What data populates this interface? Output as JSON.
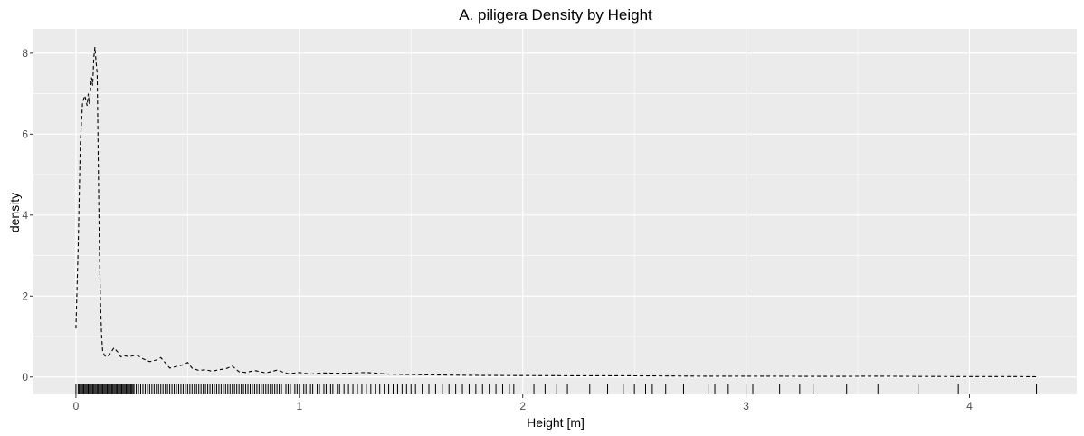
{
  "chart_data": {
    "type": "area",
    "title": "A. piligera Density by Height",
    "xlabel": "Height [m]",
    "ylabel": "density",
    "xlim": [
      -0.19,
      4.48
    ],
    "ylim": [
      -0.43,
      8.6
    ],
    "x_ticks": [
      0,
      1,
      2,
      3,
      4
    ],
    "y_ticks": [
      0,
      2,
      4,
      6,
      8
    ],
    "x_minor_ticks": [
      0.5,
      1.5,
      2.5,
      3.5
    ],
    "y_minor_ticks": [
      1,
      3,
      5,
      7
    ],
    "grid": true,
    "panel_background": "#EBEBEB",
    "grid_color": "#FFFFFF",
    "line_style": "dashed",
    "line_color": "#000000",
    "series": [
      {
        "x": [
          0.0,
          0.01,
          0.02,
          0.03,
          0.04,
          0.05,
          0.055,
          0.06,
          0.065,
          0.07,
          0.075,
          0.08,
          0.085,
          0.09,
          0.095,
          0.1,
          0.105,
          0.11,
          0.115,
          0.12,
          0.13,
          0.14,
          0.15,
          0.17,
          0.19,
          0.2,
          0.22,
          0.24,
          0.27,
          0.3,
          0.33,
          0.36,
          0.38,
          0.4,
          0.42,
          0.45,
          0.48,
          0.5,
          0.52,
          0.55,
          0.58,
          0.61,
          0.64,
          0.67,
          0.7,
          0.73,
          0.76,
          0.8,
          0.85,
          0.9,
          0.95,
          1.0,
          1.05,
          1.1,
          1.2,
          1.3,
          1.4,
          1.5,
          1.6,
          1.8,
          2.0,
          2.2,
          2.4,
          2.6,
          2.8,
          3.0,
          3.2,
          3.4,
          3.6,
          3.8,
          4.0,
          4.2,
          4.3
        ],
        "y": [
          1.2,
          3.2,
          5.8,
          6.8,
          6.95,
          6.7,
          7.0,
          6.75,
          7.1,
          7.4,
          7.2,
          7.9,
          8.15,
          7.8,
          7.5,
          5.3,
          3.2,
          1.8,
          1.0,
          0.62,
          0.52,
          0.5,
          0.55,
          0.72,
          0.6,
          0.5,
          0.52,
          0.5,
          0.55,
          0.45,
          0.38,
          0.42,
          0.48,
          0.35,
          0.22,
          0.26,
          0.3,
          0.36,
          0.22,
          0.16,
          0.18,
          0.14,
          0.18,
          0.2,
          0.27,
          0.13,
          0.11,
          0.16,
          0.1,
          0.17,
          0.08,
          0.11,
          0.07,
          0.1,
          0.09,
          0.11,
          0.07,
          0.06,
          0.05,
          0.04,
          0.035,
          0.03,
          0.03,
          0.025,
          0.02,
          0.02,
          0.018,
          0.015,
          0.02,
          0.012,
          0.01,
          0.01,
          0.005
        ]
      }
    ],
    "rug": [
      0.0,
      0.01,
      0.015,
      0.02,
      0.025,
      0.03,
      0.035,
      0.04,
      0.045,
      0.05,
      0.055,
      0.06,
      0.065,
      0.07,
      0.075,
      0.08,
      0.085,
      0.09,
      0.095,
      0.1,
      0.105,
      0.11,
      0.115,
      0.12,
      0.125,
      0.13,
      0.135,
      0.14,
      0.145,
      0.15,
      0.155,
      0.16,
      0.165,
      0.17,
      0.175,
      0.18,
      0.185,
      0.19,
      0.195,
      0.2,
      0.205,
      0.21,
      0.215,
      0.22,
      0.225,
      0.23,
      0.235,
      0.24,
      0.245,
      0.25,
      0.255,
      0.26,
      0.27,
      0.28,
      0.29,
      0.3,
      0.31,
      0.32,
      0.33,
      0.34,
      0.35,
      0.36,
      0.37,
      0.38,
      0.39,
      0.4,
      0.41,
      0.42,
      0.43,
      0.44,
      0.45,
      0.46,
      0.47,
      0.48,
      0.49,
      0.5,
      0.51,
      0.52,
      0.53,
      0.54,
      0.55,
      0.56,
      0.57,
      0.58,
      0.59,
      0.6,
      0.61,
      0.62,
      0.63,
      0.64,
      0.65,
      0.66,
      0.67,
      0.68,
      0.69,
      0.7,
      0.71,
      0.72,
      0.73,
      0.74,
      0.75,
      0.76,
      0.77,
      0.78,
      0.79,
      0.8,
      0.81,
      0.82,
      0.83,
      0.84,
      0.85,
      0.86,
      0.87,
      0.88,
      0.89,
      0.9,
      0.91,
      0.92,
      0.94,
      0.95,
      0.96,
      0.98,
      0.99,
      1.0,
      1.02,
      1.03,
      1.05,
      1.06,
      1.08,
      1.09,
      1.11,
      1.12,
      1.14,
      1.15,
      1.17,
      1.18,
      1.2,
      1.22,
      1.24,
      1.26,
      1.28,
      1.3,
      1.32,
      1.34,
      1.36,
      1.38,
      1.4,
      1.42,
      1.44,
      1.46,
      1.48,
      1.5,
      1.52,
      1.55,
      1.58,
      1.61,
      1.64,
      1.67,
      1.7,
      1.73,
      1.76,
      1.79,
      1.82,
      1.85,
      1.88,
      1.91,
      1.94,
      1.96,
      2.05,
      2.1,
      2.15,
      2.2,
      2.3,
      2.38,
      2.45,
      2.5,
      2.55,
      2.58,
      2.64,
      2.72,
      2.83,
      2.86,
      2.92,
      3.0,
      3.03,
      3.15,
      3.24,
      3.3,
      3.45,
      3.59,
      3.77,
      3.95,
      4.3
    ]
  }
}
